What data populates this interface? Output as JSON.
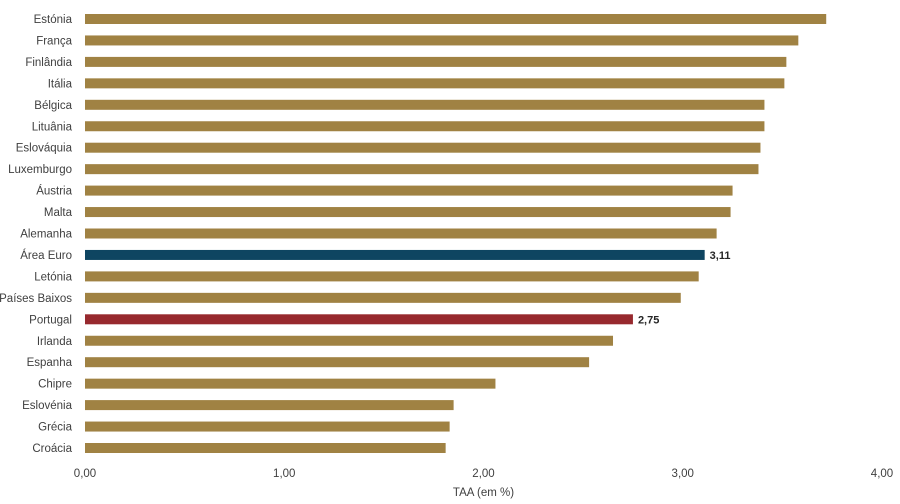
{
  "chart_data": {
    "type": "bar",
    "orientation": "horizontal",
    "title": "",
    "xlabel": "TAA (em %)",
    "ylabel": "",
    "xlim": [
      0,
      4
    ],
    "x_ticks": [
      "0,00",
      "1,00",
      "2,00",
      "3,00",
      "4,00"
    ],
    "grid": false,
    "categories": [
      "Estónia",
      "França",
      "Finlândia",
      "Itália",
      "Bélgica",
      "Lituânia",
      "Eslováquia",
      "Luxemburgo",
      "Áustria",
      "Malta",
      "Alemanha",
      "Área Euro",
      "Letónia",
      "Países Baixos",
      "Portugal",
      "Irlanda",
      "Espanha",
      "Chipre",
      "Eslovénia",
      "Grécia",
      "Croácia"
    ],
    "values": [
      3.72,
      3.58,
      3.52,
      3.51,
      3.41,
      3.41,
      3.39,
      3.38,
      3.25,
      3.24,
      3.17,
      3.11,
      3.08,
      2.99,
      2.75,
      2.65,
      2.53,
      2.06,
      1.85,
      1.83,
      1.81
    ],
    "data_labels": {
      "Área Euro": "3,11",
      "Portugal": "2,75"
    },
    "colors": {
      "default": "#a08243",
      "Área Euro": "#0e4561",
      "Portugal": "#97292e"
    }
  }
}
